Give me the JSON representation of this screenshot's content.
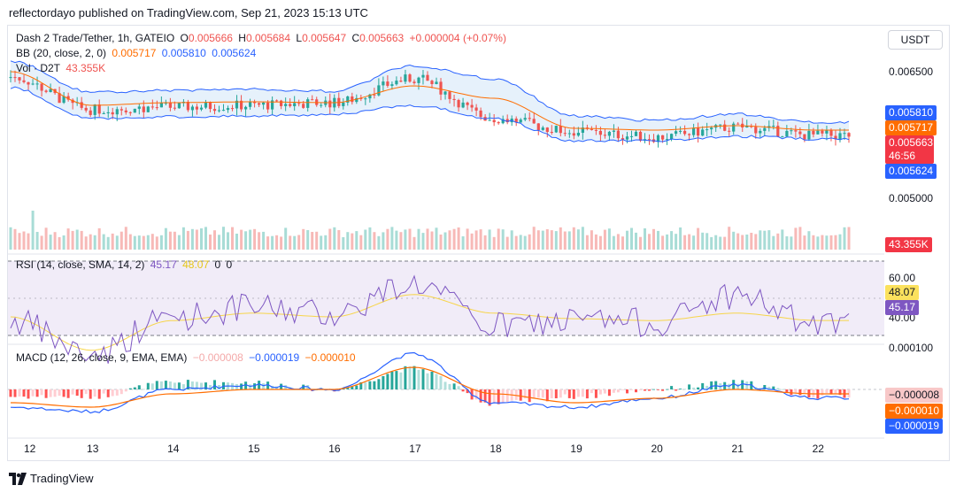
{
  "header": {
    "published_line": "reflectordayo published on TradingView.com, Sep 21, 2023 15:13 UTC"
  },
  "legend": {
    "symbol": "Dash 2 Trade/Tether, 1h, GATEIO",
    "o_label": "O",
    "o_value": "0.005666",
    "h_label": "H",
    "h_value": "0.005684",
    "l_label": "L",
    "l_value": "0.005647",
    "c_label": "C",
    "c_value": "0.005663",
    "change": "+0.000004 (+0.07%)",
    "bb_label": "BB (20, close, 2, 0)",
    "bb_mid": "0.005717",
    "bb_upper": "0.005810",
    "bb_lower": "0.005624",
    "vol_label": "Vol · D2T",
    "vol_value": "43.355K",
    "rsi_label": "RSI (14, close, SMA, 14, 2)",
    "rsi_value": "45.17",
    "rsi_ma_value": "48.07",
    "rsi_extra1": "0",
    "rsi_extra2": "0",
    "macd_label": "MACD (12, 26, close, 9, EMA, EMA)",
    "macd_hist": "−0.000008",
    "macd_value": "−0.000019",
    "macd_signal": "−0.000010"
  },
  "currency_button": "USDT",
  "price_axis": {
    "ticks": [
      "0.006500",
      "0.005000"
    ],
    "tags": {
      "upper": "0.005810",
      "mid": "0.005717",
      "close": "0.005663",
      "countdown": "46:56",
      "lower": "0.005624",
      "volume": "43.355K"
    }
  },
  "rsi_axis": {
    "ticks": [
      "60.00",
      "40.00"
    ],
    "tags": {
      "ma": "48.07",
      "rsi": "45.17"
    }
  },
  "macd_axis": {
    "ticks": [
      "0.000100"
    ],
    "tags": {
      "hist": "−0.000008",
      "signal": "−0.000010",
      "macd": "−0.000019"
    }
  },
  "time_axis": [
    "12",
    "13",
    "14",
    "15",
    "16",
    "17",
    "18",
    "19",
    "20",
    "21",
    "22"
  ],
  "footer": {
    "brand": "TradingView"
  },
  "colors": {
    "up": "#26a69a",
    "down": "#ef5350",
    "bb_band": "#2962ff",
    "bb_mid": "#ff6d00",
    "bb_fill": "#e3f0fb",
    "rsi_line": "#7e57c2",
    "rsi_ma": "#f7d54a",
    "rsi_bg": "#ede7f6",
    "macd_line": "#2962ff",
    "signal_line": "#ff6d00",
    "tag_blue": "#2962ff",
    "tag_orange": "#ff6d00",
    "tag_red": "#f23645",
    "tag_yellow": "#fbe15d",
    "tag_purple": "#7e57c2",
    "tag_pink": "#f8c8c8"
  },
  "chart_data": {
    "type": "line",
    "title": "Dash 2 Trade/Tether, 1h, GATEIO",
    "x": [
      "12",
      "13",
      "14",
      "15",
      "16",
      "17",
      "18",
      "19",
      "20",
      "21",
      "22"
    ],
    "series": [
      {
        "name": "Close",
        "values": [
          0.00632,
          0.00595,
          0.00598,
          0.006,
          0.00603,
          0.0063,
          0.00585,
          0.0057,
          0.00564,
          0.00575,
          0.00566
        ]
      },
      {
        "name": "BB Upper",
        "values": [
          0.0065,
          0.00615,
          0.00617,
          0.00618,
          0.00616,
          0.00645,
          0.0063,
          0.00588,
          0.00583,
          0.0059,
          0.00581
        ]
      },
      {
        "name": "BB Basis",
        "values": [
          0.00638,
          0.006,
          0.00603,
          0.00604,
          0.00603,
          0.00622,
          0.00608,
          0.00574,
          0.00572,
          0.00577,
          0.00572
        ]
      },
      {
        "name": "BB Lower",
        "values": [
          0.0062,
          0.00585,
          0.00587,
          0.00588,
          0.0059,
          0.006,
          0.00585,
          0.0056,
          0.0056,
          0.00565,
          0.00562
        ]
      },
      {
        "name": "RSI",
        "values": [
          48,
          30,
          50,
          55,
          52,
          68,
          45,
          48,
          47,
          62,
          45.17
        ]
      },
      {
        "name": "RSI MA",
        "values": [
          50,
          32,
          48,
          52,
          50,
          62,
          52,
          49,
          48,
          52,
          48.07
        ]
      },
      {
        "name": "MACD",
        "values": [
          -4e-05,
          -5e-05,
          0.0,
          1e-05,
          0.0,
          8e-05,
          -3e-05,
          -4e-05,
          -2e-05,
          1e-05,
          -1.9e-05
        ]
      },
      {
        "name": "Signal",
        "values": [
          -3e-05,
          -4e-05,
          -1e-05,
          0.0,
          0.0,
          5e-05,
          -1e-05,
          -3e-05,
          -2e-05,
          0.0,
          -1e-05
        ]
      }
    ],
    "price_range": [
      0.0045,
      0.0068
    ],
    "rsi_range": [
      25,
      80
    ],
    "macd_range": [
      -7e-05,
      0.00012
    ],
    "grid": false,
    "legend": "top-left"
  }
}
